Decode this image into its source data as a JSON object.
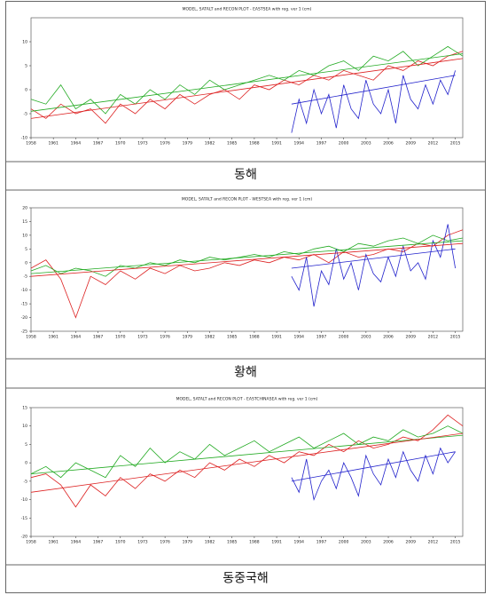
{
  "chart_data": [
    {
      "type": "line",
      "title": "MODEL, SATALT and RECON PLOT - EASTSEA with reg. ver 1 (cm)",
      "caption": "동해",
      "xlim": [
        1958,
        2016
      ],
      "xticks": [
        1958,
        1961,
        1964,
        1967,
        1970,
        1973,
        1976,
        1979,
        1982,
        1985,
        1988,
        1991,
        1994,
        1997,
        2000,
        2003,
        2006,
        2009,
        2012,
        2015
      ],
      "ylim": [
        -10,
        15
      ],
      "yticks": [
        -10,
        -5,
        0,
        5,
        10
      ],
      "series": [
        {
          "color": "#dd2222",
          "x": [
            1958,
            1960,
            1962,
            1964,
            1966,
            1968,
            1970,
            1972,
            1974,
            1976,
            1978,
            1980,
            1982,
            1984,
            1986,
            1988,
            1990,
            1992,
            1994,
            1996,
            1998,
            2000,
            2002,
            2004,
            2006,
            2008,
            2010,
            2012,
            2014,
            2016
          ],
          "values": [
            -4,
            -6,
            -3,
            -5,
            -4,
            -7,
            -3,
            -5,
            -2,
            -4,
            -1,
            -3,
            -1,
            0,
            -2,
            1,
            0,
            2,
            1,
            3,
            2,
            4,
            3,
            2,
            5,
            4,
            6,
            5,
            7,
            8
          ]
        },
        {
          "color": "#22aa22",
          "x": [
            1958,
            1960,
            1962,
            1964,
            1966,
            1968,
            1970,
            1972,
            1974,
            1976,
            1978,
            1980,
            1982,
            1984,
            1986,
            1988,
            1990,
            1992,
            1994,
            1996,
            1998,
            2000,
            2002,
            2004,
            2006,
            2008,
            2010,
            2012,
            2014,
            2016
          ],
          "values": [
            -2,
            -3,
            1,
            -4,
            -2,
            -5,
            -1,
            -3,
            0,
            -2,
            1,
            -1,
            2,
            0,
            1,
            2,
            3,
            2,
            4,
            3,
            5,
            6,
            4,
            7,
            6,
            8,
            5,
            7,
            9,
            7
          ]
        },
        {
          "color": "#2222cc",
          "x": [
            1993,
            1994,
            1995,
            1996,
            1997,
            1998,
            1999,
            2000,
            2001,
            2002,
            2003,
            2004,
            2005,
            2006,
            2007,
            2008,
            2009,
            2010,
            2011,
            2012,
            2013,
            2014,
            2015
          ],
          "values": [
            -9,
            -2,
            -7,
            0,
            -5,
            -1,
            -8,
            1,
            -4,
            -6,
            2,
            -3,
            -5,
            0,
            -7,
            3,
            -2,
            -4,
            1,
            -3,
            2,
            -1,
            4
          ]
        },
        {
          "color": "#22aa22",
          "x": [
            1958,
            2016
          ],
          "values": [
            -4.5,
            7.5
          ]
        },
        {
          "color": "#dd2222",
          "x": [
            1958,
            2016
          ],
          "values": [
            -6,
            6.5
          ]
        },
        {
          "color": "#2222cc",
          "x": [
            1993,
            2015
          ],
          "values": [
            -3,
            3
          ]
        }
      ]
    },
    {
      "type": "line",
      "title": "MODEL, SATALT and RECON PLOT - WESTSEA with reg. ver 1 (cm)",
      "caption": "황해",
      "xlim": [
        1958,
        2016
      ],
      "xticks": [
        1958,
        1961,
        1964,
        1967,
        1970,
        1973,
        1976,
        1979,
        1982,
        1985,
        1988,
        1991,
        1994,
        1997,
        2000,
        2003,
        2006,
        2009,
        2012,
        2015
      ],
      "ylim": [
        -25,
        20
      ],
      "yticks": [
        -25,
        -20,
        -15,
        -10,
        -5,
        0,
        5,
        10,
        15,
        20
      ],
      "series": [
        {
          "color": "#dd2222",
          "x": [
            1958,
            1960,
            1962,
            1964,
            1966,
            1968,
            1970,
            1972,
            1974,
            1976,
            1978,
            1980,
            1982,
            1984,
            1986,
            1988,
            1990,
            1992,
            1994,
            1996,
            1998,
            2000,
            2002,
            2004,
            2006,
            2008,
            2010,
            2012,
            2014,
            2016
          ],
          "values": [
            -2,
            1,
            -6,
            -20,
            -5,
            -8,
            -3,
            -6,
            -2,
            -4,
            -1,
            -3,
            -2,
            0,
            -1,
            1,
            0,
            2,
            1,
            3,
            0,
            4,
            2,
            3,
            5,
            4,
            7,
            6,
            10,
            12
          ]
        },
        {
          "color": "#22aa22",
          "x": [
            1958,
            1960,
            1962,
            1964,
            1966,
            1968,
            1970,
            1972,
            1974,
            1976,
            1978,
            1980,
            1982,
            1984,
            1986,
            1988,
            1990,
            1992,
            1994,
            1996,
            1998,
            2000,
            2002,
            2004,
            2006,
            2008,
            2010,
            2012,
            2014,
            2016
          ],
          "values": [
            -3,
            -1,
            -4,
            -2,
            -3,
            -5,
            -1,
            -2,
            0,
            -1,
            1,
            0,
            2,
            1,
            2,
            3,
            2,
            4,
            3,
            5,
            6,
            4,
            7,
            6,
            8,
            9,
            7,
            10,
            8,
            9
          ]
        },
        {
          "color": "#2222cc",
          "x": [
            1993,
            1994,
            1995,
            1996,
            1997,
            1998,
            1999,
            2000,
            2001,
            2002,
            2003,
            2004,
            2005,
            2006,
            2007,
            2008,
            2009,
            2010,
            2011,
            2012,
            2013,
            2014,
            2015
          ],
          "values": [
            -5,
            -10,
            2,
            -16,
            -3,
            -8,
            5,
            -6,
            0,
            -10,
            3,
            -4,
            -7,
            2,
            -5,
            6,
            -3,
            0,
            -6,
            8,
            2,
            14,
            -2
          ]
        },
        {
          "color": "#22aa22",
          "x": [
            1958,
            2016
          ],
          "values": [
            -4,
            8
          ]
        },
        {
          "color": "#dd2222",
          "x": [
            1958,
            2016
          ],
          "values": [
            -5,
            7
          ]
        },
        {
          "color": "#2222cc",
          "x": [
            1993,
            2015
          ],
          "values": [
            -2,
            5
          ]
        }
      ]
    },
    {
      "type": "line",
      "title": "MODEL, SATALT and RECON PLOT - EASTCHINASEA with reg. ver 1 (cm)",
      "caption": "동중국해",
      "xlim": [
        1958,
        2016
      ],
      "xticks": [
        1958,
        1961,
        1964,
        1967,
        1970,
        1973,
        1976,
        1979,
        1982,
        1985,
        1988,
        1991,
        1994,
        1997,
        2000,
        2003,
        2006,
        2009,
        2012,
        2015
      ],
      "ylim": [
        -20,
        15
      ],
      "yticks": [
        -20,
        -15,
        -10,
        -5,
        0,
        5,
        10,
        15
      ],
      "series": [
        {
          "color": "#dd2222",
          "x": [
            1958,
            1960,
            1962,
            1964,
            1966,
            1968,
            1970,
            1972,
            1974,
            1976,
            1978,
            1980,
            1982,
            1984,
            1986,
            1988,
            1990,
            1992,
            1994,
            1996,
            1998,
            2000,
            2002,
            2004,
            2006,
            2008,
            2010,
            2012,
            2014,
            2016
          ],
          "values": [
            -4,
            -3,
            -6,
            -12,
            -6,
            -9,
            -4,
            -7,
            -3,
            -5,
            -2,
            -4,
            0,
            -2,
            1,
            -1,
            2,
            0,
            3,
            2,
            5,
            3,
            6,
            4,
            5,
            7,
            6,
            9,
            13,
            10
          ]
        },
        {
          "color": "#22aa22",
          "x": [
            1958,
            1960,
            1962,
            1964,
            1966,
            1968,
            1970,
            1972,
            1974,
            1976,
            1978,
            1980,
            1982,
            1984,
            1986,
            1988,
            1990,
            1992,
            1994,
            1996,
            1998,
            2000,
            2002,
            2004,
            2006,
            2008,
            2010,
            2012,
            2014,
            2016
          ],
          "values": [
            -3,
            -1,
            -4,
            0,
            -2,
            -4,
            2,
            -1,
            4,
            0,
            3,
            1,
            5,
            2,
            4,
            6,
            3,
            5,
            7,
            4,
            6,
            8,
            5,
            7,
            6,
            9,
            7,
            8,
            10,
            8
          ]
        },
        {
          "color": "#2222cc",
          "x": [
            1993,
            1994,
            1995,
            1996,
            1997,
            1998,
            1999,
            2000,
            2001,
            2002,
            2003,
            2004,
            2005,
            2006,
            2007,
            2008,
            2009,
            2010,
            2011,
            2012,
            2013,
            2014,
            2015
          ],
          "values": [
            -4,
            -8,
            1,
            -10,
            -5,
            -2,
            -7,
            0,
            -4,
            -9,
            2,
            -3,
            -6,
            1,
            -4,
            3,
            -2,
            -5,
            2,
            -3,
            4,
            0,
            3
          ]
        },
        {
          "color": "#22aa22",
          "x": [
            1958,
            2016
          ],
          "values": [
            -3,
            7.5
          ]
        },
        {
          "color": "#dd2222",
          "x": [
            1958,
            2016
          ],
          "values": [
            -8,
            8
          ]
        },
        {
          "color": "#2222cc",
          "x": [
            1993,
            2015
          ],
          "values": [
            -5,
            3
          ]
        }
      ]
    }
  ]
}
